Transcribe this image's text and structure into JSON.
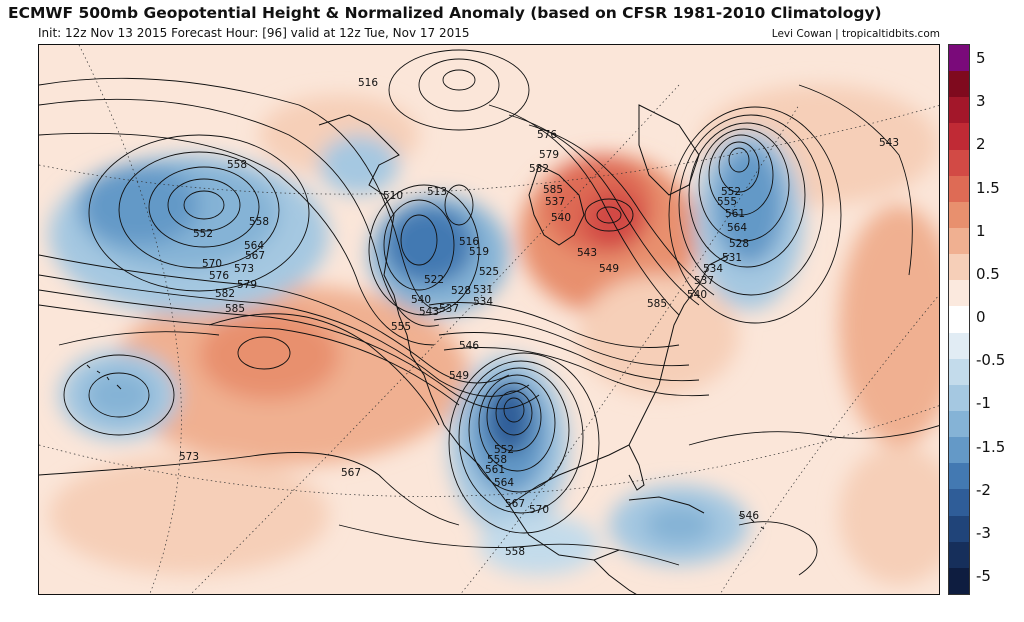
{
  "header": {
    "title": "ECMWF 500mb Geopotential Height & Normalized Anomaly (based on CFSR 1981-2010 Climatology)",
    "subtitle": "Init: 12z Nov 13 2015   Forecast Hour: [96]   valid at 12z Tue, Nov 17 2015",
    "credit": "Levi Cowan | tropicaltidbits.com"
  },
  "colorbar": {
    "colors": [
      "#7a0a7a",
      "#7f0a1e",
      "#a3172a",
      "#c02a35",
      "#d24a45",
      "#de6b55",
      "#e8906e",
      "#f0b091",
      "#f6cfb8",
      "#fbe9de",
      "#ffffff",
      "#e1ecf4",
      "#c3dbeb",
      "#a5c8e1",
      "#85b3d6",
      "#6499c7",
      "#4379b2",
      "#2f5d98",
      "#204479",
      "#162f5b",
      "#0e1d40"
    ],
    "labels": [
      "5",
      "3",
      "2",
      "1.5",
      "1",
      "0.5",
      "0",
      "-0.5",
      "-1",
      "-1.5",
      "-2",
      "-3",
      "-5"
    ]
  },
  "map": {
    "contour_labels": [
      "516",
      "558",
      "558",
      "552",
      "564",
      "567",
      "570",
      "573",
      "576",
      "579",
      "582",
      "585",
      "510",
      "513",
      "516",
      "519",
      "522",
      "525",
      "528",
      "531",
      "534",
      "537",
      "540",
      "543",
      "546",
      "549",
      "552",
      "555",
      "558",
      "561",
      "564",
      "567",
      "570",
      "573",
      "576",
      "579",
      "582",
      "585",
      "537",
      "540",
      "543",
      "549",
      "552",
      "555",
      "561",
      "564",
      "528",
      "531",
      "534",
      "537",
      "540",
      "543",
      "546",
      "558",
      "567",
      "585",
      "585",
      "585",
      "585",
      "585",
      "516",
      "519"
    ]
  }
}
